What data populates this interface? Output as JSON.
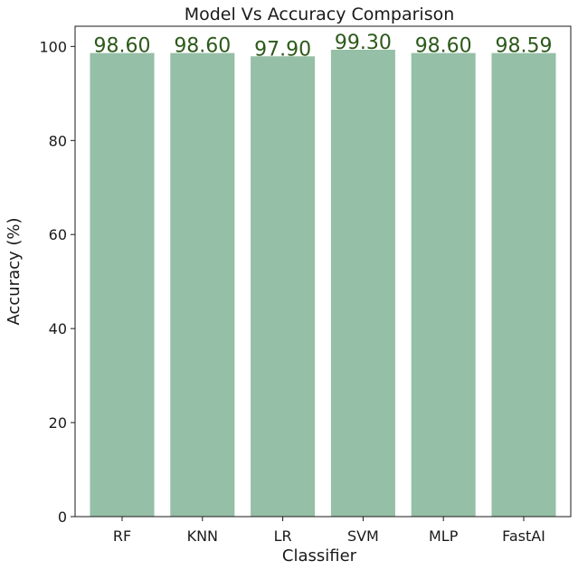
{
  "chart_data": {
    "type": "bar",
    "title": "Model Vs Accuracy Comparison",
    "xlabel": "Classifier",
    "ylabel": "Accuracy (%)",
    "categories": [
      "RF",
      "KNN",
      "LR",
      "SVM",
      "MLP",
      "FastAI"
    ],
    "values": [
      98.6,
      98.6,
      97.9,
      99.3,
      98.6,
      98.59
    ],
    "data_labels": [
      "98.60",
      "98.60",
      "97.90",
      "99.30",
      "98.60",
      "98.59"
    ],
    "ylim": [
      0,
      104.3
    ],
    "yticks": [
      0,
      20,
      40,
      60,
      80,
      100
    ],
    "grid": false,
    "legend": "none",
    "colors": {
      "bar": "#95bfa6",
      "data_label": "#2d5a1b",
      "axis": "#1a1a1a"
    }
  }
}
